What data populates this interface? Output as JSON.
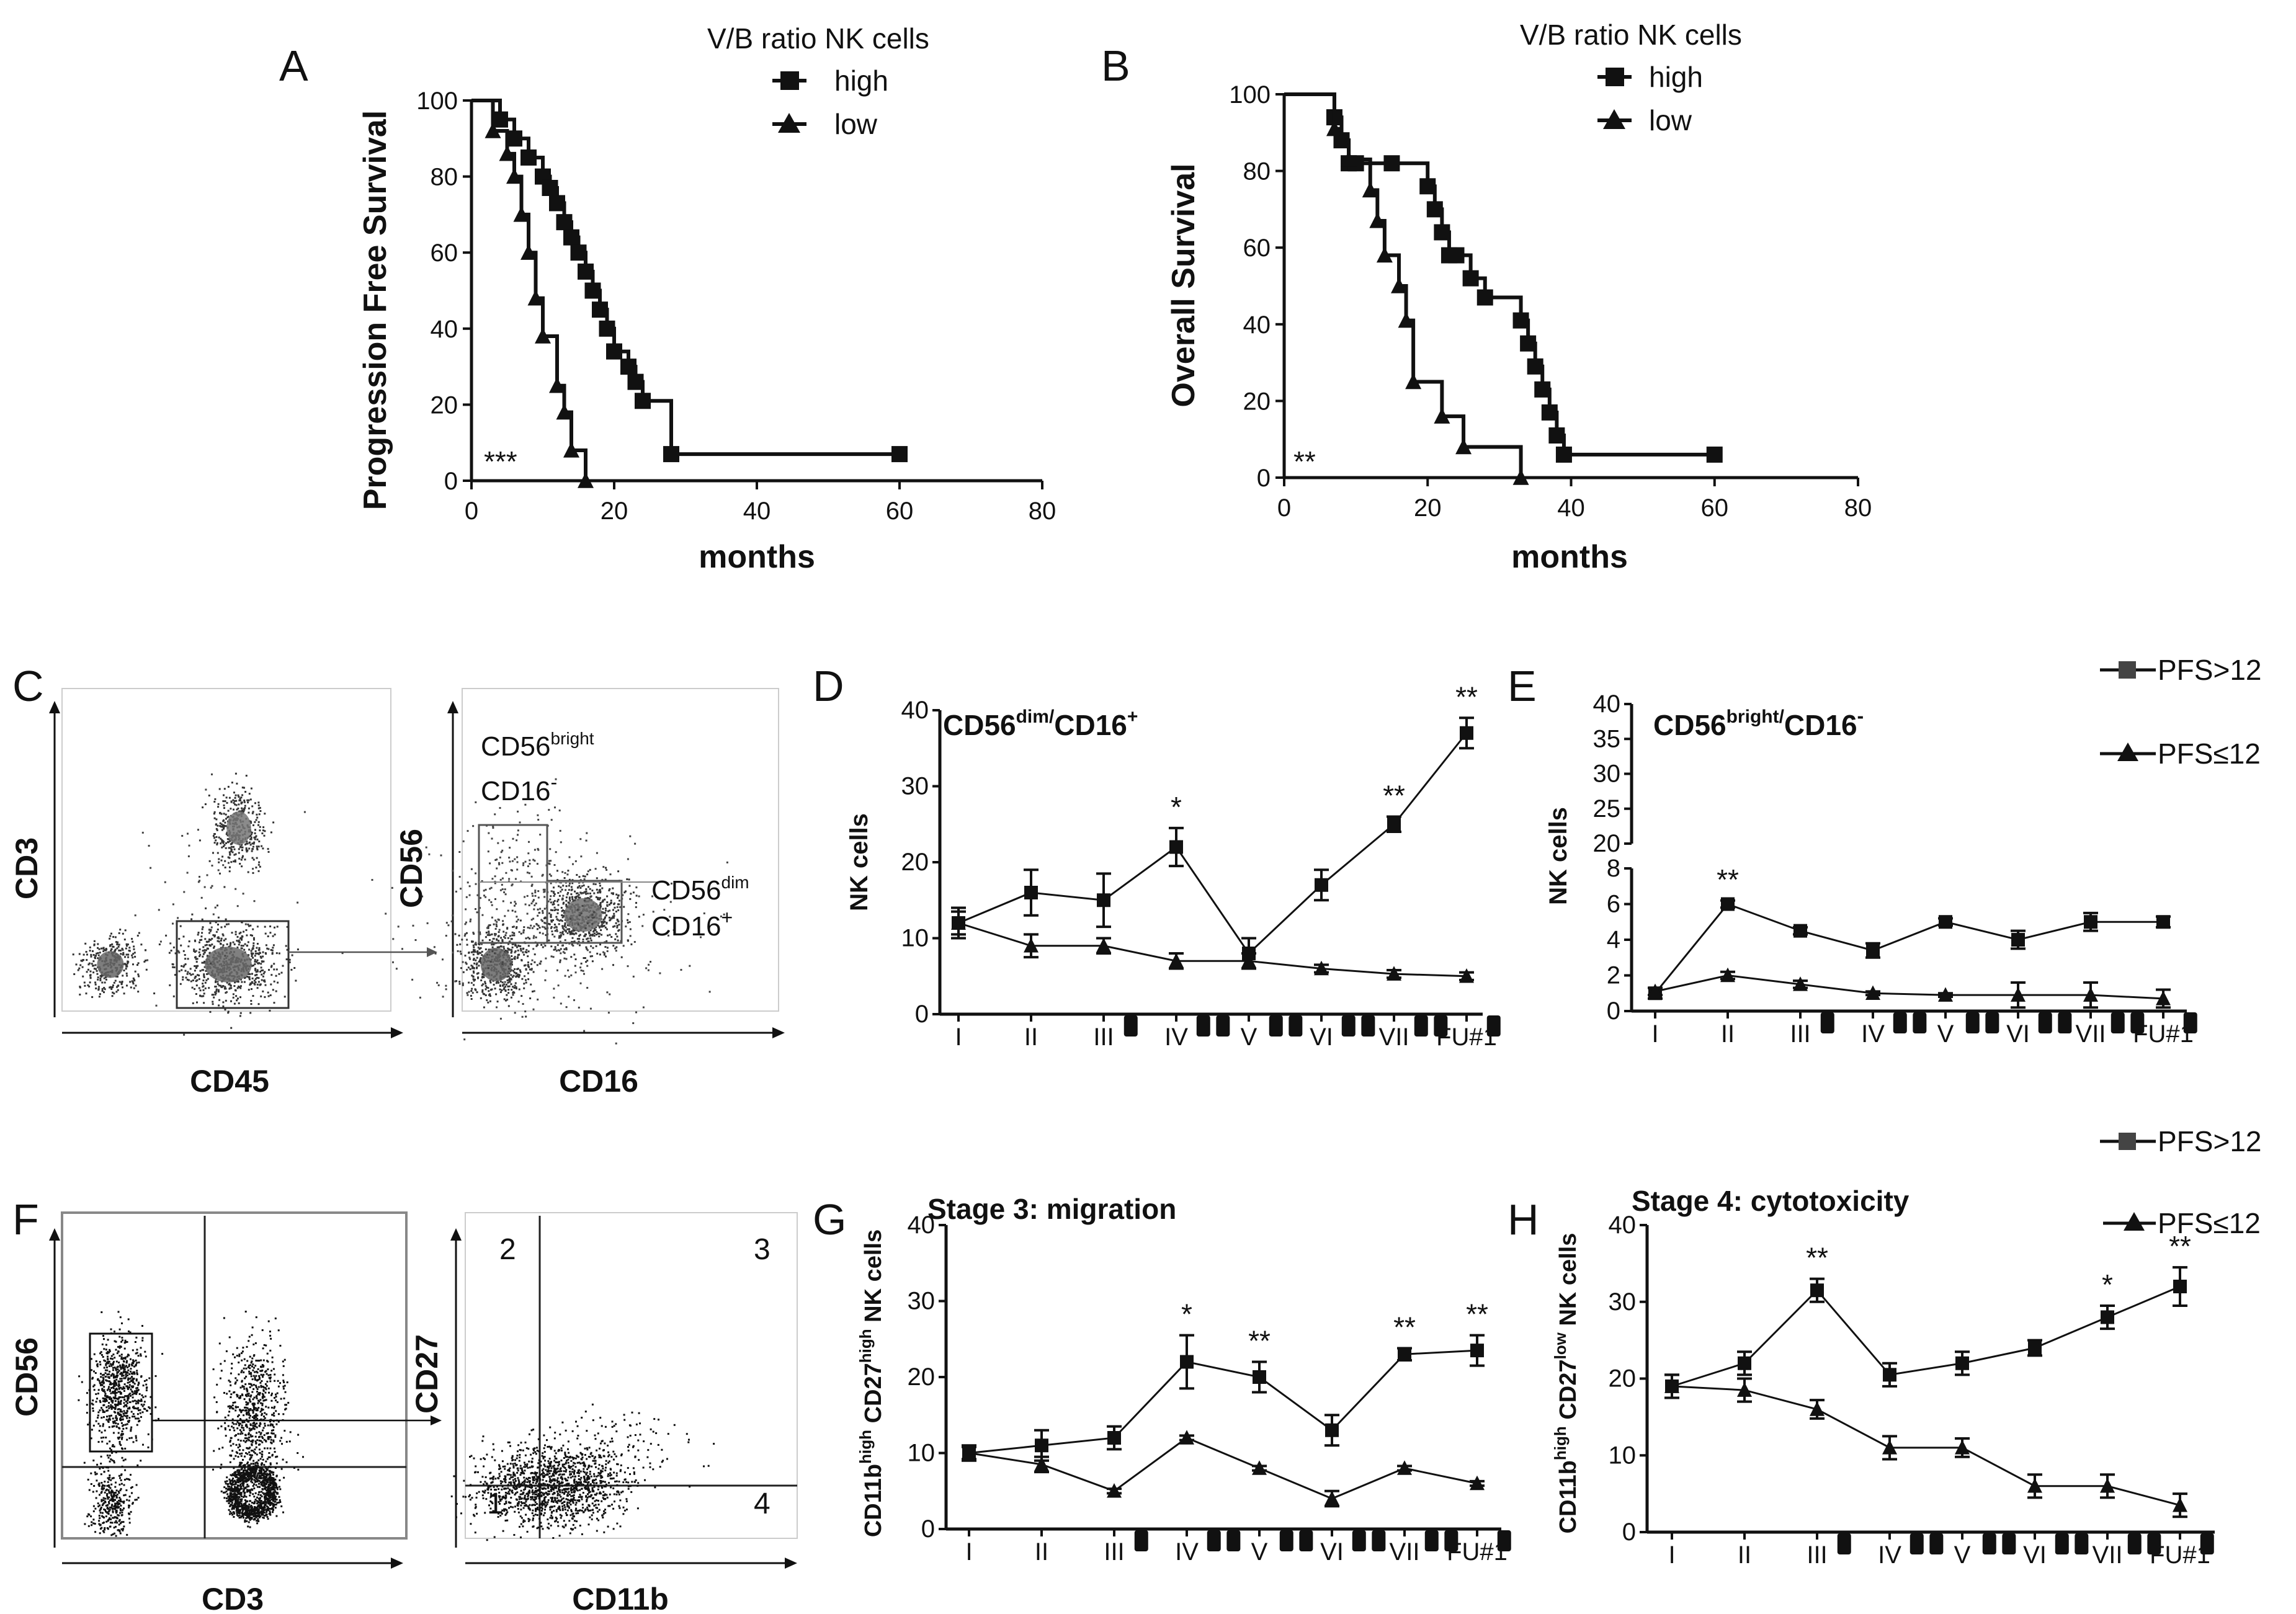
{
  "panels": {
    "A": "A",
    "B": "B",
    "C": "C",
    "D": "D",
    "E": "E",
    "F": "F",
    "G": "G",
    "H": "H"
  },
  "km_legend": {
    "title": "V/B ratio NK cells",
    "high": "high",
    "low": "low"
  },
  "timecourse_legend": {
    "pfs_high": "PFS>12",
    "pfs_low": "PFS≤12"
  },
  "flow_c": {
    "left_xlabel": "CD45",
    "left_ylabel": "CD3",
    "right_xlabel": "CD16",
    "right_ylabel": "CD56",
    "gate_bright_line1": "CD56",
    "gate_bright_sup1": "bright",
    "gate_bright_line2": "CD16",
    "gate_bright_sup2": "-",
    "gate_dim_line1": "CD56",
    "gate_dim_sup1": "dim",
    "gate_dim_line2": "CD16",
    "gate_dim_sup2": "+"
  },
  "flow_f": {
    "left_xlabel": "CD3",
    "left_ylabel": "CD56",
    "right_xlabel": "CD11b",
    "right_ylabel": "CD27",
    "q1": "1",
    "q2": "2",
    "q3": "3",
    "q4": "4"
  },
  "chart_data": [
    {
      "id": "A",
      "type": "line",
      "subtype": "kaplan-meier",
      "ylabel": "Progression Free Survival",
      "xlabel": "months",
      "xlim": [
        0,
        80
      ],
      "ylim": [
        0,
        100
      ],
      "xticks": [
        "0",
        "20",
        "40",
        "60",
        "80"
      ],
      "yticks": [
        "0",
        "20",
        "40",
        "60",
        "80",
        "100"
      ],
      "significance": "***",
      "series": [
        {
          "name": "high",
          "marker": "square",
          "x": [
            0,
            4,
            6,
            8,
            10,
            11,
            12,
            13,
            14,
            15,
            16,
            17,
            18,
            19,
            20,
            22,
            23,
            24,
            28,
            60
          ],
          "y": [
            100,
            95,
            90,
            85,
            80,
            77,
            73,
            68,
            64,
            60,
            55,
            50,
            45,
            40,
            34,
            30,
            26,
            21,
            7,
            7
          ]
        },
        {
          "name": "low",
          "marker": "triangle",
          "x": [
            0,
            3,
            5,
            6,
            7,
            8,
            9,
            10,
            12,
            13,
            14,
            16
          ],
          "y": [
            100,
            92,
            86,
            80,
            70,
            60,
            48,
            38,
            25,
            18,
            8,
            0
          ]
        }
      ]
    },
    {
      "id": "B",
      "type": "line",
      "subtype": "kaplan-meier",
      "ylabel": "Overall Survival",
      "xlabel": "months",
      "xlim": [
        0,
        80
      ],
      "ylim": [
        0,
        100
      ],
      "xticks": [
        "0",
        "20",
        "40",
        "60",
        "80"
      ],
      "yticks": [
        "0",
        "20",
        "40",
        "60",
        "80",
        "100"
      ],
      "significance": "**",
      "series": [
        {
          "name": "high",
          "marker": "square",
          "x": [
            0,
            7,
            8,
            9,
            10,
            15,
            20,
            21,
            22,
            23,
            24,
            26,
            28,
            33,
            34,
            35,
            36,
            37,
            38,
            39,
            60
          ],
          "y": [
            100,
            94,
            88,
            82,
            82,
            82,
            76,
            70,
            64,
            58,
            58,
            52,
            47,
            41,
            35,
            29,
            23,
            17,
            11,
            6,
            6
          ]
        },
        {
          "name": "low",
          "marker": "triangle",
          "x": [
            0,
            7,
            8,
            9,
            12,
            13,
            14,
            16,
            17,
            18,
            22,
            25,
            33
          ],
          "y": [
            100,
            91,
            88,
            83,
            75,
            67,
            58,
            50,
            41,
            25,
            16,
            8,
            0
          ]
        }
      ]
    },
    {
      "id": "D",
      "type": "line",
      "title": "CD56dim/CD16+",
      "title_base1": "CD56",
      "title_sup1": "dim/",
      "title_base2": "CD16",
      "title_sup2": "+",
      "ylabel": "NK cells",
      "categories": [
        "I",
        "II",
        "III",
        "IV",
        "V",
        "VI",
        "VII",
        "FU#1"
      ],
      "yticks": [
        "0",
        "10",
        "20",
        "30",
        "40"
      ],
      "ylim": [
        0,
        40
      ],
      "x": [
        1,
        2,
        3,
        4,
        5,
        6,
        7,
        8
      ],
      "series": [
        {
          "name": "PFS>12",
          "marker": "square",
          "values": [
            12,
            16,
            15,
            22,
            8,
            17,
            25,
            37
          ],
          "errors": [
            2,
            3,
            3.5,
            2.5,
            2,
            2,
            1,
            2
          ]
        },
        {
          "name": "PFS≤12",
          "marker": "triangle",
          "values": [
            12,
            9,
            9,
            7,
            7,
            6,
            5.3,
            5
          ],
          "errors": [
            1.5,
            1.5,
            1,
            1,
            1,
            0.5,
            0.5,
            0.5
          ]
        }
      ],
      "significance": [
        {
          "x": 4,
          "label": "*"
        },
        {
          "x": 7,
          "label": "**"
        },
        {
          "x": 8,
          "label": "**"
        }
      ]
    },
    {
      "id": "E",
      "type": "line",
      "title": "CD56bright/CD16-",
      "title_base1": "CD56",
      "title_sup1": "bright/",
      "title_base2": "CD16",
      "title_sup2": "-",
      "ylabel": "NK cells",
      "categories": [
        "I",
        "II",
        "III",
        "IV",
        "V",
        "VI",
        "VII",
        "FU#1"
      ],
      "yticks_lower": [
        "0",
        "2",
        "4",
        "6",
        "8"
      ],
      "yticks_upper": [
        "20",
        "25",
        "30",
        "35",
        "40"
      ],
      "ylim_lower": [
        0,
        8
      ],
      "ylim_upper": [
        20,
        40
      ],
      "axis_break": true,
      "series": [
        {
          "name": "PFS>12",
          "marker": "square",
          "values": [
            1,
            6,
            4.5,
            3.4,
            5,
            4,
            5,
            5
          ],
          "errors": [
            0.3,
            0.2,
            0.2,
            0.4,
            0.2,
            0.5,
            0.5,
            0.3
          ]
        },
        {
          "name": "PFS≤12",
          "marker": "triangle",
          "values": [
            1.1,
            2,
            1.5,
            1,
            0.9,
            0.9,
            0.9,
            0.7
          ],
          "errors": [
            0.2,
            0.2,
            0.2,
            0.1,
            0.1,
            0.7,
            0.7,
            0.5
          ]
        }
      ],
      "significance": [
        {
          "x": 2,
          "label": "**"
        }
      ]
    },
    {
      "id": "G",
      "type": "line",
      "title": "Stage 3: migration",
      "ylabel_parts": [
        "CD11b",
        "high",
        " CD27",
        "high",
        " NK cells"
      ],
      "categories": [
        "I",
        "II",
        "III",
        "IV",
        "V",
        "VI",
        "VII",
        "FU#1"
      ],
      "yticks": [
        "0",
        "10",
        "20",
        "30",
        "40"
      ],
      "ylim": [
        0,
        40
      ],
      "series": [
        {
          "name": "PFS>12",
          "marker": "square",
          "values": [
            10,
            11,
            12,
            22,
            20,
            13,
            23,
            23.5
          ],
          "errors": [
            1,
            2,
            1.5,
            3.5,
            2,
            2,
            0.8,
            2
          ]
        },
        {
          "name": "PFS≤12",
          "marker": "triangle",
          "values": [
            10,
            8.5,
            5,
            12,
            8,
            4,
            8,
            6
          ],
          "errors": [
            0.8,
            1,
            0.3,
            0.3,
            0.3,
            1,
            0.3,
            0.3
          ]
        }
      ],
      "significance": [
        {
          "x": 4,
          "label": "*"
        },
        {
          "x": 5,
          "label": "**"
        },
        {
          "x": 7,
          "label": "**"
        },
        {
          "x": 8,
          "label": "**"
        }
      ]
    },
    {
      "id": "H",
      "type": "line",
      "title": "Stage 4: cytotoxicity",
      "ylabel_parts": [
        "CD11b",
        "high",
        " CD27",
        "low",
        " NK cells"
      ],
      "categories": [
        "I",
        "II",
        "III",
        "IV",
        "V",
        "VI",
        "VII",
        "FU#1"
      ],
      "yticks": [
        "0",
        "10",
        "20",
        "30",
        "40"
      ],
      "ylim": [
        0,
        40
      ],
      "series": [
        {
          "name": "PFS>12",
          "marker": "square",
          "values": [
            19,
            22,
            31.5,
            20.5,
            22,
            24,
            28,
            32
          ],
          "errors": [
            1.5,
            1.5,
            1.5,
            1.5,
            1.5,
            1,
            1.5,
            2.5
          ]
        },
        {
          "name": "PFS≤12",
          "marker": "triangle",
          "values": [
            19,
            18.5,
            16,
            11,
            11,
            6,
            6,
            3.5
          ],
          "errors": [
            1.5,
            1.5,
            1.2,
            1.5,
            1.2,
            1.5,
            1.5,
            1.5
          ]
        }
      ],
      "significance": [
        {
          "x": 3,
          "label": "**"
        },
        {
          "x": 7,
          "label": "*"
        },
        {
          "x": 8,
          "label": "**"
        }
      ]
    }
  ]
}
